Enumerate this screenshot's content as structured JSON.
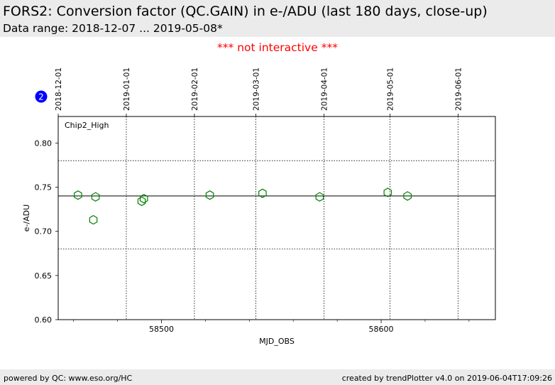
{
  "header": {
    "title": "FORS2: Conversion factor (QC.GAIN) in e-/ADU (last 180 days, close-up)",
    "subtitle": "Data range: 2018-12-07 ... 2019-05-08*"
  },
  "notice": "*** not interactive ***",
  "badge": "2",
  "footer": {
    "left": "powered by QC: www.eso.org/HC",
    "right": "created by trendPlotter v4.0 on 2019-06-04T17:09:26"
  },
  "colors": {
    "marker": "#008000",
    "badge": "#0000ff",
    "notice": "#ff0000"
  },
  "chart_data": {
    "type": "scatter",
    "panel_label": "Chip2_High",
    "xlabel": "MJD_OBS",
    "ylabel": "e-/ADU",
    "xlim": [
      58453,
      58652
    ],
    "ylim": [
      0.6,
      0.83
    ],
    "x_ticks": [
      58500,
      58600
    ],
    "y_ticks": [
      0.6,
      0.65,
      0.7,
      0.75,
      0.8
    ],
    "y_tick_labels": [
      "0.60",
      "0.65",
      "0.70",
      "0.75",
      "0.80"
    ],
    "date_ticks": [
      {
        "label": "2018-12-01",
        "mjd": 58453
      },
      {
        "label": "2019-01-01",
        "mjd": 58484
      },
      {
        "label": "2019-02-01",
        "mjd": 58515
      },
      {
        "label": "2019-03-01",
        "mjd": 58543
      },
      {
        "label": "2019-04-01",
        "mjd": 58574
      },
      {
        "label": "2019-05-01",
        "mjd": 58604
      },
      {
        "label": "2019-06-01",
        "mjd": 58635
      }
    ],
    "reference_lines": {
      "mean": 0.74,
      "upper": 0.78,
      "lower": 0.68
    },
    "marker": "hexagon-open",
    "series": [
      {
        "points": [
          {
            "x": 58462,
            "y": 0.741
          },
          {
            "x": 58469,
            "y": 0.713
          },
          {
            "x": 58470,
            "y": 0.739
          },
          {
            "x": 58491,
            "y": 0.734
          },
          {
            "x": 58492,
            "y": 0.737
          },
          {
            "x": 58522,
            "y": 0.741
          },
          {
            "x": 58546,
            "y": 0.743
          },
          {
            "x": 58572,
            "y": 0.739
          },
          {
            "x": 58603,
            "y": 0.744
          },
          {
            "x": 58612,
            "y": 0.74
          }
        ]
      }
    ]
  }
}
